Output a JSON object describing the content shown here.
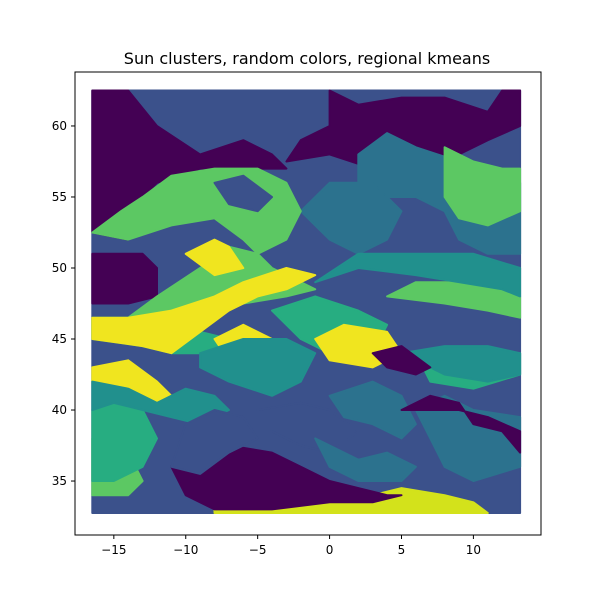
{
  "chart_data": {
    "type": "scatter",
    "title": "Sun clusters, random colors, regional kmeans",
    "xlabel": "",
    "ylabel": "",
    "xlim": [
      -17.7,
      14.7
    ],
    "ylim": [
      31.2,
      63.8
    ],
    "grid": false,
    "legend": "none",
    "xticks": [
      -15,
      -10,
      -5,
      0,
      5,
      10
    ],
    "xtick_labels": [
      "−15",
      "−10",
      "−5",
      "0",
      "5",
      "10"
    ],
    "yticks": [
      35,
      40,
      45,
      50,
      55,
      60
    ],
    "ytick_labels": [
      "35",
      "40",
      "45",
      "50",
      "55",
      "60"
    ],
    "grid_extent": {
      "x": [
        -16.5,
        13.25
      ],
      "y": [
        32.75,
        62.5
      ]
    },
    "cluster_colors": [
      "#440154",
      "#3b518b",
      "#2c728e",
      "#21908d",
      "#27ad81",
      "#5cc863",
      "#f0e51f",
      "#d3e21b"
    ],
    "regions": [
      {
        "cluster": 1,
        "polygon": [
          [
            -16.5,
            62.5
          ],
          [
            13.25,
            62.5
          ],
          [
            13.25,
            32.75
          ],
          [
            -16.5,
            32.75
          ]
        ]
      },
      {
        "cluster": 0,
        "polygon": [
          [
            -16.5,
            62.5
          ],
          [
            -14,
            62.5
          ],
          [
            -12,
            60
          ],
          [
            -9,
            58
          ],
          [
            -6,
            59
          ],
          [
            -4,
            58
          ],
          [
            -3,
            57
          ],
          [
            -6,
            57
          ],
          [
            -9,
            57
          ],
          [
            -12,
            56
          ],
          [
            -14,
            54
          ],
          [
            -14,
            52
          ],
          [
            -16.5,
            52.5
          ]
        ]
      },
      {
        "cluster": 0,
        "polygon": [
          [
            -16.5,
            51
          ],
          [
            -13,
            51
          ],
          [
            -12,
            50
          ],
          [
            -12,
            48
          ],
          [
            -14,
            47.5
          ],
          [
            -16.5,
            47.5
          ]
        ]
      },
      {
        "cluster": 0,
        "polygon": [
          [
            0,
            62.5
          ],
          [
            2,
            61.5
          ],
          [
            5,
            62
          ],
          [
            8,
            62
          ],
          [
            11,
            61
          ],
          [
            12,
            62.5
          ],
          [
            13.25,
            62.5
          ],
          [
            13.25,
            60
          ],
          [
            11,
            59
          ],
          [
            9,
            58
          ],
          [
            6,
            57
          ],
          [
            3,
            57
          ],
          [
            0,
            58
          ],
          [
            -3,
            57.5
          ],
          [
            -2,
            59
          ],
          [
            0,
            60
          ]
        ]
      },
      {
        "cluster": 2,
        "polygon": [
          [
            2,
            58
          ],
          [
            4,
            59.5
          ],
          [
            6,
            58.5
          ],
          [
            9,
            57.5
          ],
          [
            11,
            56.5
          ],
          [
            13.25,
            56
          ],
          [
            13.25,
            51
          ],
          [
            11,
            51
          ],
          [
            9,
            52
          ],
          [
            8,
            54
          ],
          [
            6,
            55
          ],
          [
            4,
            55
          ],
          [
            2,
            56
          ]
        ]
      },
      {
        "cluster": 2,
        "polygon": [
          [
            -2,
            54
          ],
          [
            0,
            56
          ],
          [
            3,
            56
          ],
          [
            5,
            54
          ],
          [
            4,
            52
          ],
          [
            2,
            51
          ],
          [
            0,
            52
          ]
        ]
      },
      {
        "cluster": 5,
        "polygon": [
          [
            -16.5,
            52.5
          ],
          [
            -14,
            52
          ],
          [
            -11,
            53
          ],
          [
            -8,
            53.5
          ],
          [
            -6,
            52
          ],
          [
            -5,
            51
          ],
          [
            -3,
            52
          ],
          [
            -2,
            54
          ],
          [
            -3,
            56
          ],
          [
            -5,
            57
          ],
          [
            -8,
            57
          ],
          [
            -11,
            56.5
          ],
          [
            -13,
            55
          ],
          [
            -14.5,
            54
          ]
        ]
      },
      {
        "cluster": 5,
        "polygon": [
          [
            -12,
            48
          ],
          [
            -9,
            50
          ],
          [
            -7,
            51.5
          ],
          [
            -5,
            51
          ],
          [
            -4,
            50
          ],
          [
            -3,
            49.5
          ],
          [
            -2,
            49
          ],
          [
            -1,
            48.5
          ],
          [
            -3,
            48
          ],
          [
            -6,
            47.5
          ],
          [
            -9,
            46.5
          ],
          [
            -12,
            46
          ],
          [
            -14,
            46.5
          ]
        ]
      },
      {
        "cluster": 5,
        "polygon": [
          [
            8,
            58.5
          ],
          [
            10,
            57.5
          ],
          [
            12,
            57
          ],
          [
            13.25,
            57
          ],
          [
            13.25,
            54
          ],
          [
            11,
            53
          ],
          [
            9,
            53.5
          ],
          [
            8,
            55
          ]
        ]
      },
      {
        "cluster": 5,
        "polygon": [
          [
            -16.5,
            38
          ],
          [
            -15,
            38.5
          ],
          [
            -14,
            37
          ],
          [
            -13,
            35
          ],
          [
            -14,
            34
          ],
          [
            -16.5,
            34
          ]
        ]
      },
      {
        "cluster": 5,
        "polygon": [
          [
            4,
            48
          ],
          [
            8,
            47.5
          ],
          [
            11,
            47
          ],
          [
            13.25,
            46.5
          ],
          [
            13.25,
            48
          ],
          [
            10,
            49
          ],
          [
            6,
            49
          ]
        ]
      },
      {
        "cluster": 4,
        "polygon": [
          [
            -16.5,
            46.5
          ],
          [
            -14,
            46.5
          ],
          [
            -12,
            46
          ],
          [
            -9,
            45.5
          ],
          [
            -7,
            45
          ],
          [
            -8,
            44
          ],
          [
            -11,
            44
          ],
          [
            -13,
            44.5
          ],
          [
            -16.5,
            45
          ]
        ]
      },
      {
        "cluster": 4,
        "polygon": [
          [
            -4,
            47
          ],
          [
            -1,
            48
          ],
          [
            2,
            47
          ],
          [
            4,
            46
          ],
          [
            3,
            44
          ],
          [
            0,
            44
          ],
          [
            -2,
            45
          ]
        ]
      },
      {
        "cluster": 4,
        "polygon": [
          [
            -16.5,
            40
          ],
          [
            -15,
            41
          ],
          [
            -13,
            40
          ],
          [
            -12,
            38
          ],
          [
            -13,
            36
          ],
          [
            -15,
            35
          ],
          [
            -16.5,
            35
          ]
        ]
      },
      {
        "cluster": 4,
        "polygon": [
          [
            6,
            44
          ],
          [
            9,
            43.5
          ],
          [
            12,
            44
          ],
          [
            13.25,
            44
          ],
          [
            13.25,
            42.5
          ],
          [
            10,
            41.5
          ],
          [
            7,
            42
          ]
        ]
      },
      {
        "cluster": 6,
        "polygon": [
          [
            -16.5,
            45
          ],
          [
            -13,
            44.5
          ],
          [
            -11,
            44
          ],
          [
            -9,
            45.5
          ],
          [
            -7,
            47
          ],
          [
            -5,
            48
          ],
          [
            -3,
            48.5
          ],
          [
            -1,
            49.5
          ],
          [
            -3,
            50
          ],
          [
            -6,
            49
          ],
          [
            -8,
            48
          ],
          [
            -11,
            47
          ],
          [
            -14,
            46.5
          ],
          [
            -16.5,
            46.5
          ]
        ]
      },
      {
        "cluster": 6,
        "polygon": [
          [
            -16.5,
            43
          ],
          [
            -14,
            43.5
          ],
          [
            -12,
            42
          ],
          [
            -11,
            41
          ],
          [
            -12,
            40.5
          ],
          [
            -14,
            41.5
          ],
          [
            -16.5,
            42
          ]
        ]
      },
      {
        "cluster": 6,
        "polygon": [
          [
            -8,
            45
          ],
          [
            -6,
            46
          ],
          [
            -4,
            45
          ],
          [
            -5,
            44
          ],
          [
            -7,
            43.5
          ]
        ]
      },
      {
        "cluster": 6,
        "polygon": [
          [
            -1,
            45
          ],
          [
            1,
            46
          ],
          [
            4,
            45.5
          ],
          [
            5,
            44
          ],
          [
            3,
            43
          ],
          [
            0,
            43.5
          ]
        ]
      },
      {
        "cluster": 6,
        "polygon": [
          [
            -10,
            51
          ],
          [
            -8,
            52
          ],
          [
            -7,
            51.5
          ],
          [
            -6,
            50
          ],
          [
            -8,
            49.5
          ]
        ]
      },
      {
        "cluster": 3,
        "polygon": [
          [
            -16.5,
            42
          ],
          [
            -14,
            41.5
          ],
          [
            -12,
            40.5
          ],
          [
            -10,
            41.5
          ],
          [
            -8,
            41
          ],
          [
            -7,
            40
          ],
          [
            -9,
            39
          ],
          [
            -11,
            39.5
          ],
          [
            -13,
            40
          ],
          [
            -15,
            40.5
          ],
          [
            -16.5,
            40
          ]
        ]
      },
      {
        "cluster": 3,
        "polygon": [
          [
            -9,
            44
          ],
          [
            -6,
            45
          ],
          [
            -3,
            45
          ],
          [
            -1,
            44
          ],
          [
            -2,
            42
          ],
          [
            -4,
            41
          ],
          [
            -7,
            42
          ],
          [
            -9,
            43
          ]
        ]
      },
      {
        "cluster": 3,
        "polygon": [
          [
            -1,
            49
          ],
          [
            2,
            50
          ],
          [
            6,
            49.5
          ],
          [
            9,
            49
          ],
          [
            12,
            48.5
          ],
          [
            13.25,
            48
          ],
          [
            13.25,
            50
          ],
          [
            10,
            51
          ],
          [
            6,
            51
          ],
          [
            2,
            51
          ]
        ]
      },
      {
        "cluster": 3,
        "polygon": [
          [
            5,
            44
          ],
          [
            8,
            42.5
          ],
          [
            11,
            42
          ],
          [
            13.25,
            42.5
          ],
          [
            13.25,
            44
          ],
          [
            11,
            44.5
          ],
          [
            8,
            44.5
          ]
        ]
      },
      {
        "cluster": 7,
        "polygon": [
          [
            -8,
            33
          ],
          [
            0,
            33.5
          ],
          [
            3,
            34
          ],
          [
            5,
            34.5
          ],
          [
            8,
            34
          ],
          [
            10,
            33.5
          ],
          [
            11,
            32.75
          ],
          [
            -8,
            32.75
          ]
        ]
      },
      {
        "cluster": 1,
        "polygon": [
          [
            -5,
            40
          ],
          [
            -2,
            40.5
          ],
          [
            0,
            40
          ],
          [
            2,
            38.5
          ],
          [
            0,
            37
          ],
          [
            -2,
            37.5
          ],
          [
            -4,
            38.5
          ]
        ]
      },
      {
        "cluster": 2,
        "polygon": [
          [
            0,
            41
          ],
          [
            3,
            42
          ],
          [
            5,
            41
          ],
          [
            6,
            39
          ],
          [
            5,
            38
          ],
          [
            3,
            39
          ],
          [
            1,
            39.5
          ]
        ]
      },
      {
        "cluster": 2,
        "polygon": [
          [
            6,
            40
          ],
          [
            8,
            41
          ],
          [
            10,
            40
          ],
          [
            13.25,
            39.5
          ],
          [
            13.25,
            36
          ],
          [
            10,
            35
          ],
          [
            8,
            36
          ],
          [
            7,
            38
          ]
        ]
      },
      {
        "cluster": 2,
        "polygon": [
          [
            -1,
            38
          ],
          [
            2,
            36.5
          ],
          [
            4,
            37
          ],
          [
            6,
            36
          ],
          [
            5,
            35
          ],
          [
            2,
            35
          ],
          [
            0,
            36
          ]
        ]
      },
      {
        "cluster": 0,
        "polygon": [
          [
            -9,
            39
          ],
          [
            -7,
            37.5
          ],
          [
            -4,
            37
          ],
          [
            -2,
            36
          ],
          [
            0,
            35
          ],
          [
            2,
            34.5
          ],
          [
            4,
            34
          ],
          [
            5,
            34
          ],
          [
            3,
            33.5
          ],
          [
            0,
            33.5
          ],
          [
            -4,
            33
          ],
          [
            -8,
            33
          ],
          [
            -10,
            34
          ],
          [
            -11,
            36
          ],
          [
            -10,
            38
          ]
        ]
      },
      {
        "cluster": 0,
        "polygon": [
          [
            5,
            40
          ],
          [
            7,
            41
          ],
          [
            9,
            40.5
          ],
          [
            10,
            39
          ],
          [
            12,
            38.5
          ],
          [
            13.25,
            37
          ],
          [
            13.25,
            38.5
          ],
          [
            11,
            39.5
          ],
          [
            9,
            40
          ]
        ]
      },
      {
        "cluster": 0,
        "polygon": [
          [
            3,
            44
          ],
          [
            5,
            44.5
          ],
          [
            7,
            43
          ],
          [
            6,
            42.5
          ],
          [
            4,
            43
          ]
        ]
      },
      {
        "cluster": 1,
        "polygon": [
          [
            -11,
            36
          ],
          [
            -10,
            39
          ],
          [
            -8,
            40
          ],
          [
            -6,
            39.5
          ],
          [
            -5,
            38
          ],
          [
            -7,
            37
          ],
          [
            -9,
            35.5
          ]
        ]
      },
      {
        "cluster": 1,
        "polygon": [
          [
            -8,
            56
          ],
          [
            -6,
            56.5
          ],
          [
            -4,
            55
          ],
          [
            -5,
            54
          ],
          [
            -7,
            54.5
          ]
        ]
      }
    ]
  }
}
